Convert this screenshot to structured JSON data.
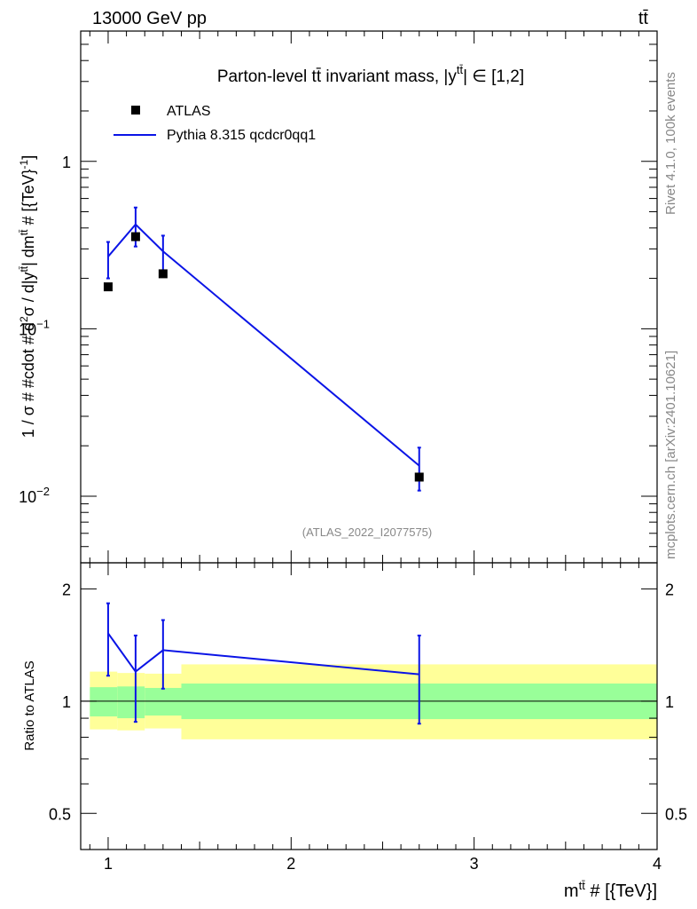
{
  "header": {
    "energy": "13000 GeV pp",
    "process": "tt̄"
  },
  "side": {
    "rivet": "Rivet 4.1.0,  100k events",
    "source": "mcplots.cern.ch [arXiv:2401.10621]"
  },
  "chart_data": [
    {
      "type": "line",
      "panel": "main",
      "title": "Parton-level tt̄ invariant mass, |y^{tt̄}| ∈ [1,2]",
      "title_main": "Parton-level tt̄ invariant mass, |y",
      "title_sup": "tt̄",
      "title_tail": "| ∈ [1,2]",
      "watermark": "(ATLAS_2022_I2077575)",
      "ylabel": "1 / σ # #cdot # d²σ / d|y^{tt̄}| dm^{tt̄} # [{TeV}⁻¹]",
      "ylabel_parts": [
        "1 / σ # #cdot # d",
        "2",
        "σ / d|y",
        "tt̄",
        "| dm",
        "tt̄",
        " # [{TeV}",
        "-1",
        "]"
      ],
      "yscale": "log",
      "xlim": [
        0.85,
        4.0
      ],
      "ylim": [
        0.004,
        6.0
      ],
      "y_ticks": [
        {
          "value": 1,
          "base": "1",
          "exp": ""
        },
        {
          "value": 0.1,
          "base": "10",
          "exp": "−1"
        },
        {
          "value": 0.01,
          "base": "10",
          "exp": "−2"
        }
      ],
      "legend": [
        {
          "label": "ATLAS",
          "kind": "marker",
          "color": "#000000"
        },
        {
          "label": "Pythia 8.315 qcdcr0qq1",
          "kind": "line",
          "color": "#0a14e6"
        }
      ],
      "series": [
        {
          "name": "ATLAS",
          "color": "#000000",
          "x": [
            1.0,
            1.15,
            1.3,
            2.7
          ],
          "y": [
            0.178,
            0.355,
            0.213,
            0.013
          ]
        },
        {
          "name": "Pythia 8.315 qcdcr0qq1",
          "color": "#0a14e6",
          "x": [
            1.0,
            1.15,
            1.3,
            2.7
          ],
          "y": [
            0.27,
            0.42,
            0.29,
            0.0152
          ],
          "err_lo": [
            0.2,
            0.31,
            0.21,
            0.0108
          ],
          "err_hi": [
            0.33,
            0.53,
            0.36,
            0.0195
          ]
        }
      ]
    },
    {
      "type": "line",
      "panel": "ratio",
      "ylabel": "Ratio to ATLAS",
      "xlabel": "m^{tt̄} # [{TeV}]",
      "xlabel_main": "m",
      "xlabel_sup": "tt̄",
      "xlabel_tail": " # [{TeV}]",
      "yscale": "log",
      "xlim": [
        0.85,
        4.0
      ],
      "ylim": [
        0.4,
        2.35
      ],
      "y_ticks": [
        {
          "value": 2,
          "label": "2"
        },
        {
          "value": 1,
          "label": "1"
        },
        {
          "value": 0.5,
          "label": "0.5"
        }
      ],
      "x_ticks": [
        {
          "value": 1,
          "label": "1"
        },
        {
          "value": 2,
          "label": "2"
        },
        {
          "value": 3,
          "label": "3"
        },
        {
          "value": 4,
          "label": "4"
        }
      ],
      "bands": [
        {
          "x0": 0.9,
          "x1": 1.05,
          "yellow": [
            0.84,
            1.2
          ],
          "green": [
            0.91,
            1.09
          ]
        },
        {
          "x0": 1.05,
          "x1": 1.2,
          "yellow": [
            0.835,
            1.19
          ],
          "green": [
            0.9,
            1.095
          ]
        },
        {
          "x0": 1.2,
          "x1": 1.4,
          "yellow": [
            0.845,
            1.185
          ],
          "green": [
            0.915,
            1.085
          ]
        },
        {
          "x0": 1.4,
          "x1": 4.0,
          "yellow": [
            0.79,
            1.255
          ],
          "green": [
            0.895,
            1.115
          ]
        }
      ],
      "series": [
        {
          "name": "Pythia 8.315 qcdcr0qq1",
          "color": "#0a14e6",
          "x": [
            1.0,
            1.15,
            1.3,
            2.7
          ],
          "y": [
            1.52,
            1.2,
            1.37,
            1.18
          ],
          "err_lo": [
            1.17,
            0.88,
            1.08,
            0.87
          ],
          "err_hi": [
            1.83,
            1.5,
            1.65,
            1.5
          ]
        }
      ]
    }
  ]
}
